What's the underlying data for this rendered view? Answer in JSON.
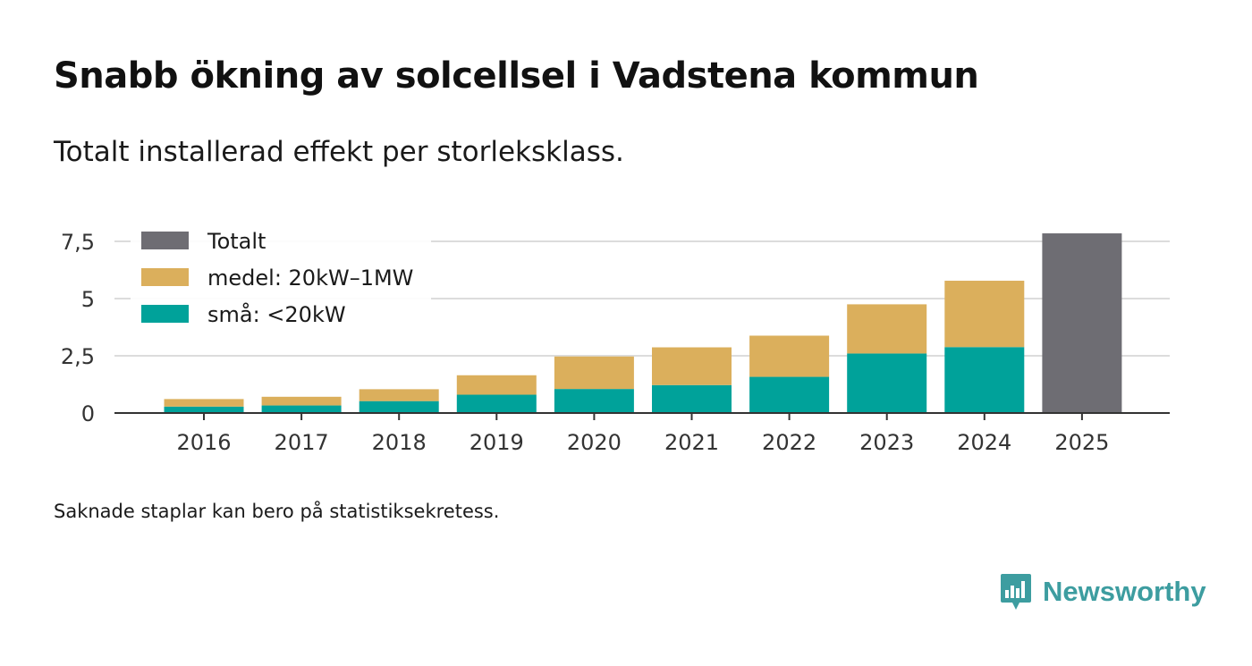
{
  "header": {
    "title": "Snabb ökning av solcellsel i Vadstena kommun",
    "subtitle": "Totalt installerad effekt per storleksklass."
  },
  "footnote": "Saknade staplar kan bero på statistiksekretess.",
  "brand": {
    "name": "Newsworthy",
    "icon": "newsworthy-logo-icon",
    "color": "#3d9da0"
  },
  "chart_data": {
    "type": "bar",
    "stacked": true,
    "title": "Snabb ökning av solcellsel i Vadstena kommun",
    "subtitle": "Totalt installerad effekt per storleksklass.",
    "xlabel": "",
    "ylabel": "",
    "categories": [
      "2016",
      "2017",
      "2018",
      "2019",
      "2020",
      "2021",
      "2022",
      "2023",
      "2024",
      "2025"
    ],
    "series": [
      {
        "name": "små: <20kW",
        "color": "#00a29a",
        "values": [
          0.28,
          0.33,
          0.52,
          0.8,
          1.05,
          1.22,
          1.58,
          2.6,
          2.88,
          null
        ]
      },
      {
        "name": "medel: 20kW–1MW",
        "color": "#dbaf5c",
        "values": [
          0.33,
          0.38,
          0.52,
          0.85,
          1.42,
          1.65,
          1.8,
          2.15,
          2.9,
          null
        ]
      },
      {
        "name": "Totalt",
        "color": "#6e6d73",
        "values": [
          null,
          null,
          null,
          null,
          null,
          null,
          null,
          null,
          null,
          7.85
        ]
      }
    ],
    "yticks": [
      0,
      2.5,
      5,
      7.5
    ],
    "ytick_labels": [
      "0",
      "2,5",
      "5",
      "7,5"
    ],
    "ylim": [
      0,
      8
    ],
    "grid": true,
    "legend": {
      "position": "top-left",
      "entries": [
        {
          "label": "Totalt",
          "color": "#6e6d73"
        },
        {
          "label": "medel: 20kW–1MW",
          "color": "#dbaf5c"
        },
        {
          "label": "små: <20kW",
          "color": "#00a29a"
        }
      ]
    }
  }
}
